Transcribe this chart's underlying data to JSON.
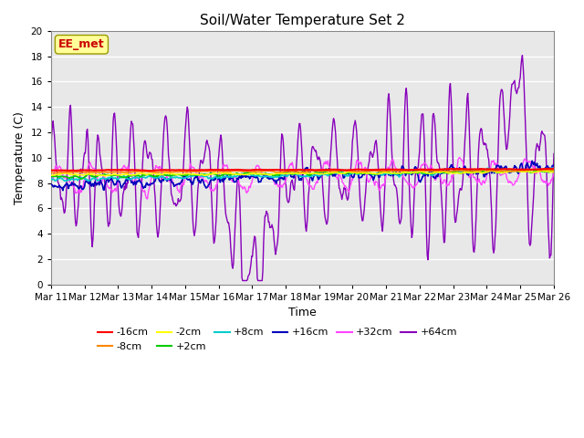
{
  "title": "Soil/Water Temperature Set 2",
  "xlabel": "Time",
  "ylabel": "Temperature (C)",
  "ylim": [
    0,
    20
  ],
  "yticks": [
    0,
    2,
    4,
    6,
    8,
    10,
    12,
    14,
    16,
    18,
    20
  ],
  "x_labels": [
    "Mar 11",
    "Mar 12",
    "Mar 13",
    "Mar 14",
    "Mar 15",
    "Mar 16",
    "Mar 17",
    "Mar 18",
    "Mar 19",
    "Mar 20",
    "Mar 21",
    "Mar 22",
    "Mar 23",
    "Mar 24",
    "Mar 25",
    "Mar 26"
  ],
  "annotation_text": "EE_met",
  "annotation_color": "#cc0000",
  "annotation_bg": "#ffff99",
  "plot_bg": "#e8e8e8",
  "fig_bg": "#ffffff",
  "colors": {
    "neg16": "#ff0000",
    "neg8": "#ff8800",
    "neg2": "#ffff00",
    "pos2": "#00cc00",
    "pos8": "#00cccc",
    "pos16": "#0000bb",
    "pos32": "#ff44ff",
    "pos64": "#8800bb"
  },
  "legend_labels": [
    "-16cm",
    "-8cm",
    "-2cm",
    "+2cm",
    "+8cm",
    "+16cm",
    "+32cm",
    "+64cm"
  ],
  "legend_colors": [
    "#ff0000",
    "#ff8800",
    "#ffff00",
    "#00cc00",
    "#00cccc",
    "#0000bb",
    "#ff44ff",
    "#8800bb"
  ],
  "grid_color": "#ffffff",
  "n_days": 15,
  "pts_per_day": 48
}
